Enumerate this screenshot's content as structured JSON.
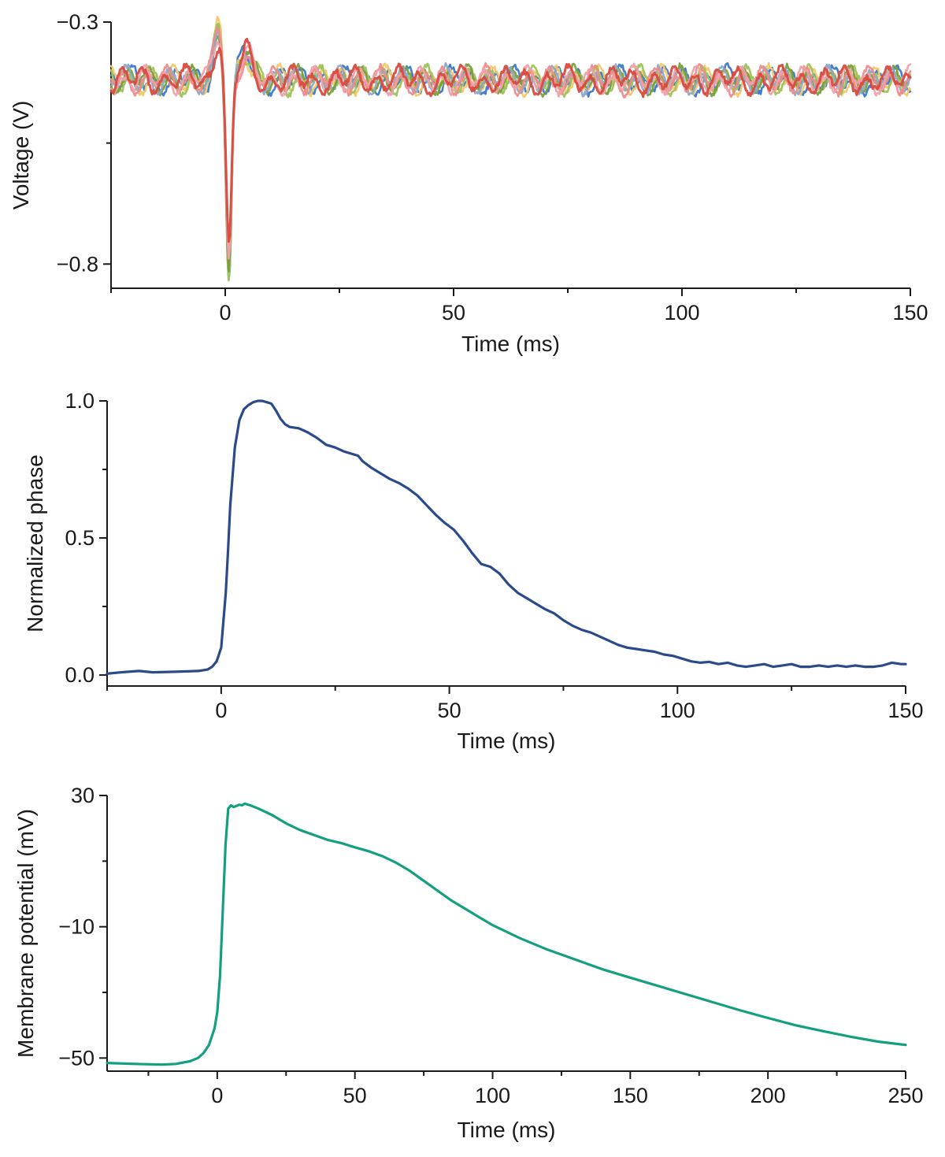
{
  "chart_data": [
    {
      "type": "line",
      "xlabel": "Time (ms)",
      "ylabel": "Voltage (V)",
      "xlim": [
        -25,
        150
      ],
      "ylim": [
        -0.85,
        -0.3
      ],
      "xticks": [
        0,
        50,
        100,
        150
      ],
      "xticklabels": [
        "0",
        "50",
        "100",
        "150"
      ],
      "x_minor_ticks": [
        -25,
        25,
        75,
        125
      ],
      "yticks": [
        -0.3,
        -0.8
      ],
      "yticklabels": [
        "−0.3",
        "−0.8"
      ],
      "y_minor_ticks": [
        -0.55
      ],
      "grid": false,
      "legend": "none",
      "note_series": "many overlaid repeated voltage traces",
      "series": [
        {
          "color": "#3b78c8",
          "baseline": -0.42,
          "spike_min": -0.83,
          "spike_max": -0.31
        },
        {
          "color": "#f4c86a",
          "baseline": -0.42,
          "spike_min": -0.82,
          "spike_max": -0.31
        },
        {
          "color": "#9cc45a",
          "baseline": -0.42,
          "spike_min": -0.82,
          "spike_max": -0.32
        },
        {
          "color": "#7a9e3a",
          "baseline": -0.42,
          "spike_min": -0.81,
          "spike_max": -0.32
        },
        {
          "color": "#8fa9c6",
          "baseline": -0.42,
          "spike_min": -0.81,
          "spike_max": -0.31
        },
        {
          "color": "#f08a8a",
          "baseline": -0.42,
          "spike_min": -0.8,
          "spike_max": -0.31
        },
        {
          "color": "#f0a0a8",
          "baseline": -0.42,
          "spike_min": -0.8,
          "spike_max": -0.32
        },
        {
          "color": "#d94a3e",
          "baseline": -0.42,
          "spike_min": -0.78,
          "spike_max": -0.33
        }
      ]
    },
    {
      "type": "line",
      "xlabel": "Time (ms)",
      "ylabel": "Normalized phase",
      "xlim": [
        -25,
        150
      ],
      "ylim": [
        -0.04,
        1.0
      ],
      "xticks": [
        0,
        50,
        100,
        150
      ],
      "xticklabels": [
        "0",
        "50",
        "100",
        "150"
      ],
      "x_minor_ticks": [
        -25,
        25,
        75,
        125
      ],
      "yticks": [
        0.0,
        0.5,
        1.0
      ],
      "yticklabels": [
        "0.0",
        "0.5",
        "1.0"
      ],
      "y_minor_ticks": [
        0.25,
        0.75
      ],
      "grid": false,
      "legend": "none",
      "series": [
        {
          "color": "#2b4a8a",
          "x": [
            -25,
            -22,
            -18,
            -15,
            -10,
            -5,
            -3,
            -2,
            -1,
            0,
            0.5,
            1,
            1.5,
            2,
            3,
            4,
            5,
            6,
            7,
            8,
            9,
            10,
            11,
            12,
            13,
            14,
            15,
            17,
            19,
            21,
            23,
            25,
            27,
            29,
            30,
            31,
            33,
            35,
            37,
            39,
            41,
            43,
            45,
            47,
            49,
            51,
            53,
            55,
            57,
            59,
            61,
            63,
            65,
            67,
            69,
            71,
            73,
            75,
            77,
            79,
            81,
            83,
            85,
            87,
            89,
            91,
            93,
            95,
            97,
            99,
            101,
            103,
            105,
            107,
            109,
            111,
            113,
            115,
            117,
            119,
            121,
            123,
            125,
            127,
            129,
            131,
            133,
            135,
            137,
            139,
            141,
            143,
            145,
            147,
            149,
            150
          ],
          "y": [
            0.005,
            0.01,
            0.015,
            0.01,
            0.012,
            0.015,
            0.02,
            0.03,
            0.05,
            0.1,
            0.2,
            0.3,
            0.45,
            0.62,
            0.83,
            0.93,
            0.97,
            0.985,
            0.995,
            1.0,
            1.0,
            0.995,
            0.99,
            0.965,
            0.935,
            0.915,
            0.905,
            0.9,
            0.885,
            0.865,
            0.84,
            0.83,
            0.815,
            0.805,
            0.8,
            0.78,
            0.755,
            0.735,
            0.715,
            0.7,
            0.68,
            0.655,
            0.62,
            0.585,
            0.555,
            0.53,
            0.49,
            0.445,
            0.405,
            0.395,
            0.37,
            0.33,
            0.3,
            0.28,
            0.26,
            0.24,
            0.225,
            0.2,
            0.18,
            0.165,
            0.155,
            0.14,
            0.125,
            0.11,
            0.1,
            0.095,
            0.09,
            0.085,
            0.075,
            0.07,
            0.06,
            0.05,
            0.045,
            0.048,
            0.04,
            0.045,
            0.035,
            0.03,
            0.035,
            0.04,
            0.03,
            0.035,
            0.04,
            0.03,
            0.03,
            0.035,
            0.03,
            0.035,
            0.03,
            0.035,
            0.03,
            0.03,
            0.035,
            0.045,
            0.04,
            0.04
          ]
        }
      ]
    },
    {
      "type": "line",
      "xlabel": "Time (ms)",
      "ylabel": "Membrane potential (mV)",
      "xlim": [
        -40,
        250
      ],
      "ylim": [
        -54,
        30
      ],
      "xticks": [
        0,
        50,
        100,
        150,
        200,
        250
      ],
      "xticklabels": [
        "0",
        "50",
        "100",
        "150",
        "200",
        "250"
      ],
      "x_minor_ticks": [
        -25,
        25,
        75,
        125,
        175,
        225
      ],
      "yticks": [
        30,
        -10,
        -50
      ],
      "yticklabels": [
        "30",
        "−10",
        "−50"
      ],
      "y_minor_ticks": [
        10,
        -30
      ],
      "grid": false,
      "legend": "none",
      "series": [
        {
          "color": "#14a07f",
          "x": [
            -40,
            -30,
            -20,
            -15,
            -10,
            -7,
            -5,
            -3,
            -1,
            0,
            1,
            2,
            3,
            4,
            5,
            6,
            7,
            8,
            9,
            10,
            12,
            15,
            20,
            25,
            30,
            35,
            40,
            45,
            50,
            55,
            60,
            65,
            70,
            75,
            80,
            85,
            90,
            95,
            100,
            110,
            120,
            130,
            140,
            150,
            160,
            170,
            180,
            190,
            200,
            210,
            220,
            230,
            240,
            250
          ],
          "y": [
            -51.5,
            -51.8,
            -52.0,
            -51.8,
            -51.0,
            -50.0,
            -48.5,
            -46.0,
            -41.0,
            -36.0,
            -25.0,
            -5.0,
            15.0,
            26.0,
            27.0,
            26.5,
            26.8,
            27.2,
            27.0,
            27.5,
            27.0,
            26.0,
            24.0,
            21.5,
            19.5,
            18.0,
            16.5,
            15.5,
            14.2,
            13.0,
            11.5,
            9.5,
            7.0,
            4.0,
            1.0,
            -2.0,
            -4.5,
            -7.0,
            -9.5,
            -13.5,
            -17.0,
            -20.0,
            -23.0,
            -25.5,
            -28.0,
            -30.5,
            -33.0,
            -35.5,
            -37.8,
            -40.0,
            -41.8,
            -43.5,
            -45.0,
            -46.0
          ]
        }
      ]
    }
  ]
}
